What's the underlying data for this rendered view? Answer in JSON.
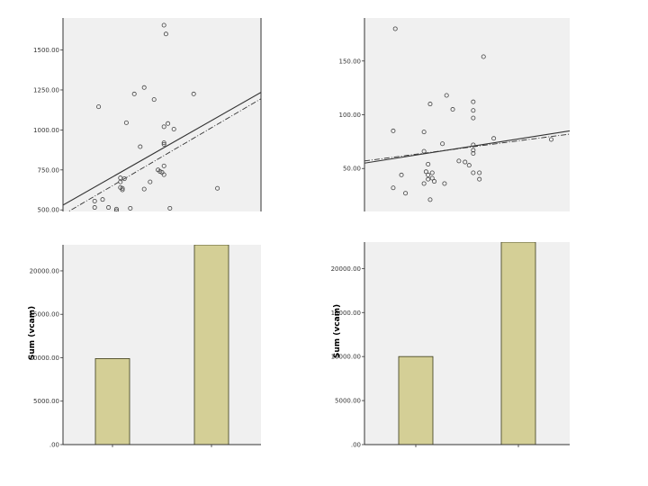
{
  "colors": {
    "plot_bg": "#f0f0f0",
    "page_bg": "#ffffff",
    "bar_fill": "#d4cf96",
    "bar_stroke": "#3a3a1a",
    "marker": "#444444",
    "line": "#333333",
    "axis": "#333333"
  },
  "chart_data": [
    {
      "id": "scatter-left",
      "type": "scatter",
      "title": "",
      "xlabel": "",
      "ylabel": "",
      "xlim": [
        0,
        100
      ],
      "ylim": [
        490,
        1700
      ],
      "yticks": [
        500,
        750,
        1000,
        1250,
        1500
      ],
      "ytick_labels": [
        "500.00",
        "750.00",
        "1000.00",
        "1250.00",
        "1500.00"
      ],
      "grid": false,
      "marker": "open-circle",
      "points": [
        [
          16,
          515
        ],
        [
          16,
          555
        ],
        [
          20,
          565
        ],
        [
          23,
          515
        ],
        [
          27,
          505
        ],
        [
          27,
          495
        ],
        [
          30,
          625
        ],
        [
          30,
          635
        ],
        [
          31,
          695
        ],
        [
          29,
          640
        ],
        [
          29,
          700
        ],
        [
          34,
          510
        ],
        [
          36,
          1225
        ],
        [
          39,
          895
        ],
        [
          41,
          1265
        ],
        [
          41,
          630
        ],
        [
          44,
          675
        ],
        [
          46,
          1190
        ],
        [
          48,
          750
        ],
        [
          49,
          740
        ],
        [
          51,
          720
        ],
        [
          50,
          735
        ],
        [
          51,
          775
        ],
        [
          51,
          910
        ],
        [
          51,
          920
        ],
        [
          51,
          1020
        ],
        [
          52,
          1600
        ],
        [
          51,
          1655
        ],
        [
          53,
          1040
        ],
        [
          54,
          510
        ],
        [
          56,
          1005
        ],
        [
          66,
          1225
        ],
        [
          78,
          635
        ],
        [
          18,
          1145
        ],
        [
          32,
          1045
        ],
        [
          29,
          675
        ]
      ],
      "fit_lines": [
        {
          "style": "solid",
          "x": [
            0,
            100
          ],
          "y": [
            530,
            1235
          ]
        },
        {
          "style": "dash-dot",
          "x": [
            0,
            100
          ],
          "y": [
            470,
            1195
          ]
        }
      ]
    },
    {
      "id": "scatter-right",
      "type": "scatter",
      "title": "",
      "xlabel": "",
      "ylabel": "",
      "xlim": [
        0,
        100
      ],
      "ylim": [
        10,
        190
      ],
      "yticks": [
        50,
        100,
        150
      ],
      "ytick_labels": [
        "50.00",
        "100.00",
        "150.00"
      ],
      "grid": false,
      "marker": "open-circle",
      "points": [
        [
          15,
          180
        ],
        [
          14,
          85
        ],
        [
          14,
          32
        ],
        [
          18,
          44
        ],
        [
          20,
          27
        ],
        [
          29,
          84
        ],
        [
          29,
          66
        ],
        [
          30,
          47
        ],
        [
          32,
          110
        ],
        [
          31,
          54
        ],
        [
          31,
          44
        ],
        [
          33,
          46
        ],
        [
          31,
          40
        ],
        [
          32,
          21
        ],
        [
          34,
          38
        ],
        [
          38,
          73
        ],
        [
          40,
          118
        ],
        [
          39,
          36
        ],
        [
          43,
          105
        ],
        [
          46,
          57
        ],
        [
          49,
          56
        ],
        [
          51,
          53
        ],
        [
          53,
          112
        ],
        [
          53,
          104
        ],
        [
          53,
          97
        ],
        [
          53,
          72
        ],
        [
          53,
          67
        ],
        [
          53,
          64
        ],
        [
          56,
          40
        ],
        [
          56,
          46
        ],
        [
          53,
          46
        ],
        [
          58,
          154
        ],
        [
          63,
          78
        ],
        [
          91,
          77
        ],
        [
          29,
          36
        ],
        [
          33,
          41
        ]
      ],
      "fit_lines": [
        {
          "style": "solid",
          "x": [
            0,
            100
          ],
          "y": [
            55,
            85
          ]
        },
        {
          "style": "dash-dot",
          "x": [
            0,
            100
          ],
          "y": [
            57,
            82
          ]
        }
      ]
    },
    {
      "id": "bar-left",
      "type": "bar",
      "title": "",
      "xlabel": "",
      "ylabel": "Sum (vcam)",
      "ylim": [
        0,
        23000
      ],
      "yticks": [
        0,
        5000,
        10000,
        15000,
        20000
      ],
      "ytick_labels": [
        ".00",
        "5000.00",
        "10000.00",
        "15000.00",
        "20000.00"
      ],
      "grid": false,
      "categories": [
        "",
        ""
      ],
      "values": [
        9900,
        23000
      ]
    },
    {
      "id": "bar-right",
      "type": "bar",
      "title": "",
      "xlabel": "",
      "ylabel": "Sum (vcam)",
      "ylim": [
        0,
        23000
      ],
      "yticks": [
        0,
        5000,
        10000,
        15000,
        20000
      ],
      "ytick_labels": [
        ".00",
        "5000.00",
        "10000.00",
        "15000.00",
        "20000.00"
      ],
      "grid": false,
      "categories": [
        "",
        ""
      ],
      "values": [
        10000,
        23000
      ]
    }
  ]
}
